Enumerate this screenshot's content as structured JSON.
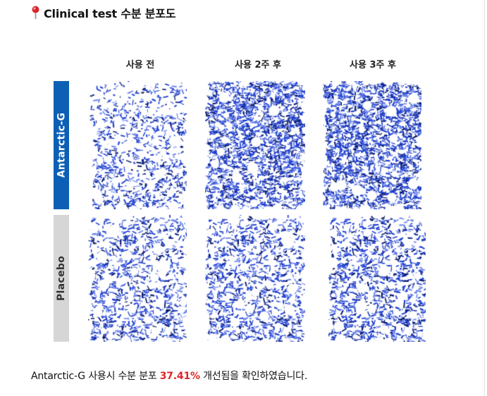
{
  "header": {
    "icon": "pin-icon",
    "title": "Clinical test 수분 분포도"
  },
  "figure": {
    "columns": [
      "사용 전",
      "사용 2주 후",
      "사용 3주 후"
    ],
    "rows": [
      {
        "label": "Antarctic-G",
        "color": "#0c5fb4"
      },
      {
        "label": "Placebo",
        "color": "#d6d6d6"
      }
    ],
    "panel_density": [
      [
        0.32,
        0.78,
        0.8
      ],
      [
        0.46,
        0.5,
        0.68
      ]
    ],
    "ink_color": "#1e3fd0"
  },
  "caption": {
    "before": "Antarctic-G 사용시 수분 분포 ",
    "highlight": "37.41%",
    "after": " 개선됨을 확인하였습니다."
  }
}
